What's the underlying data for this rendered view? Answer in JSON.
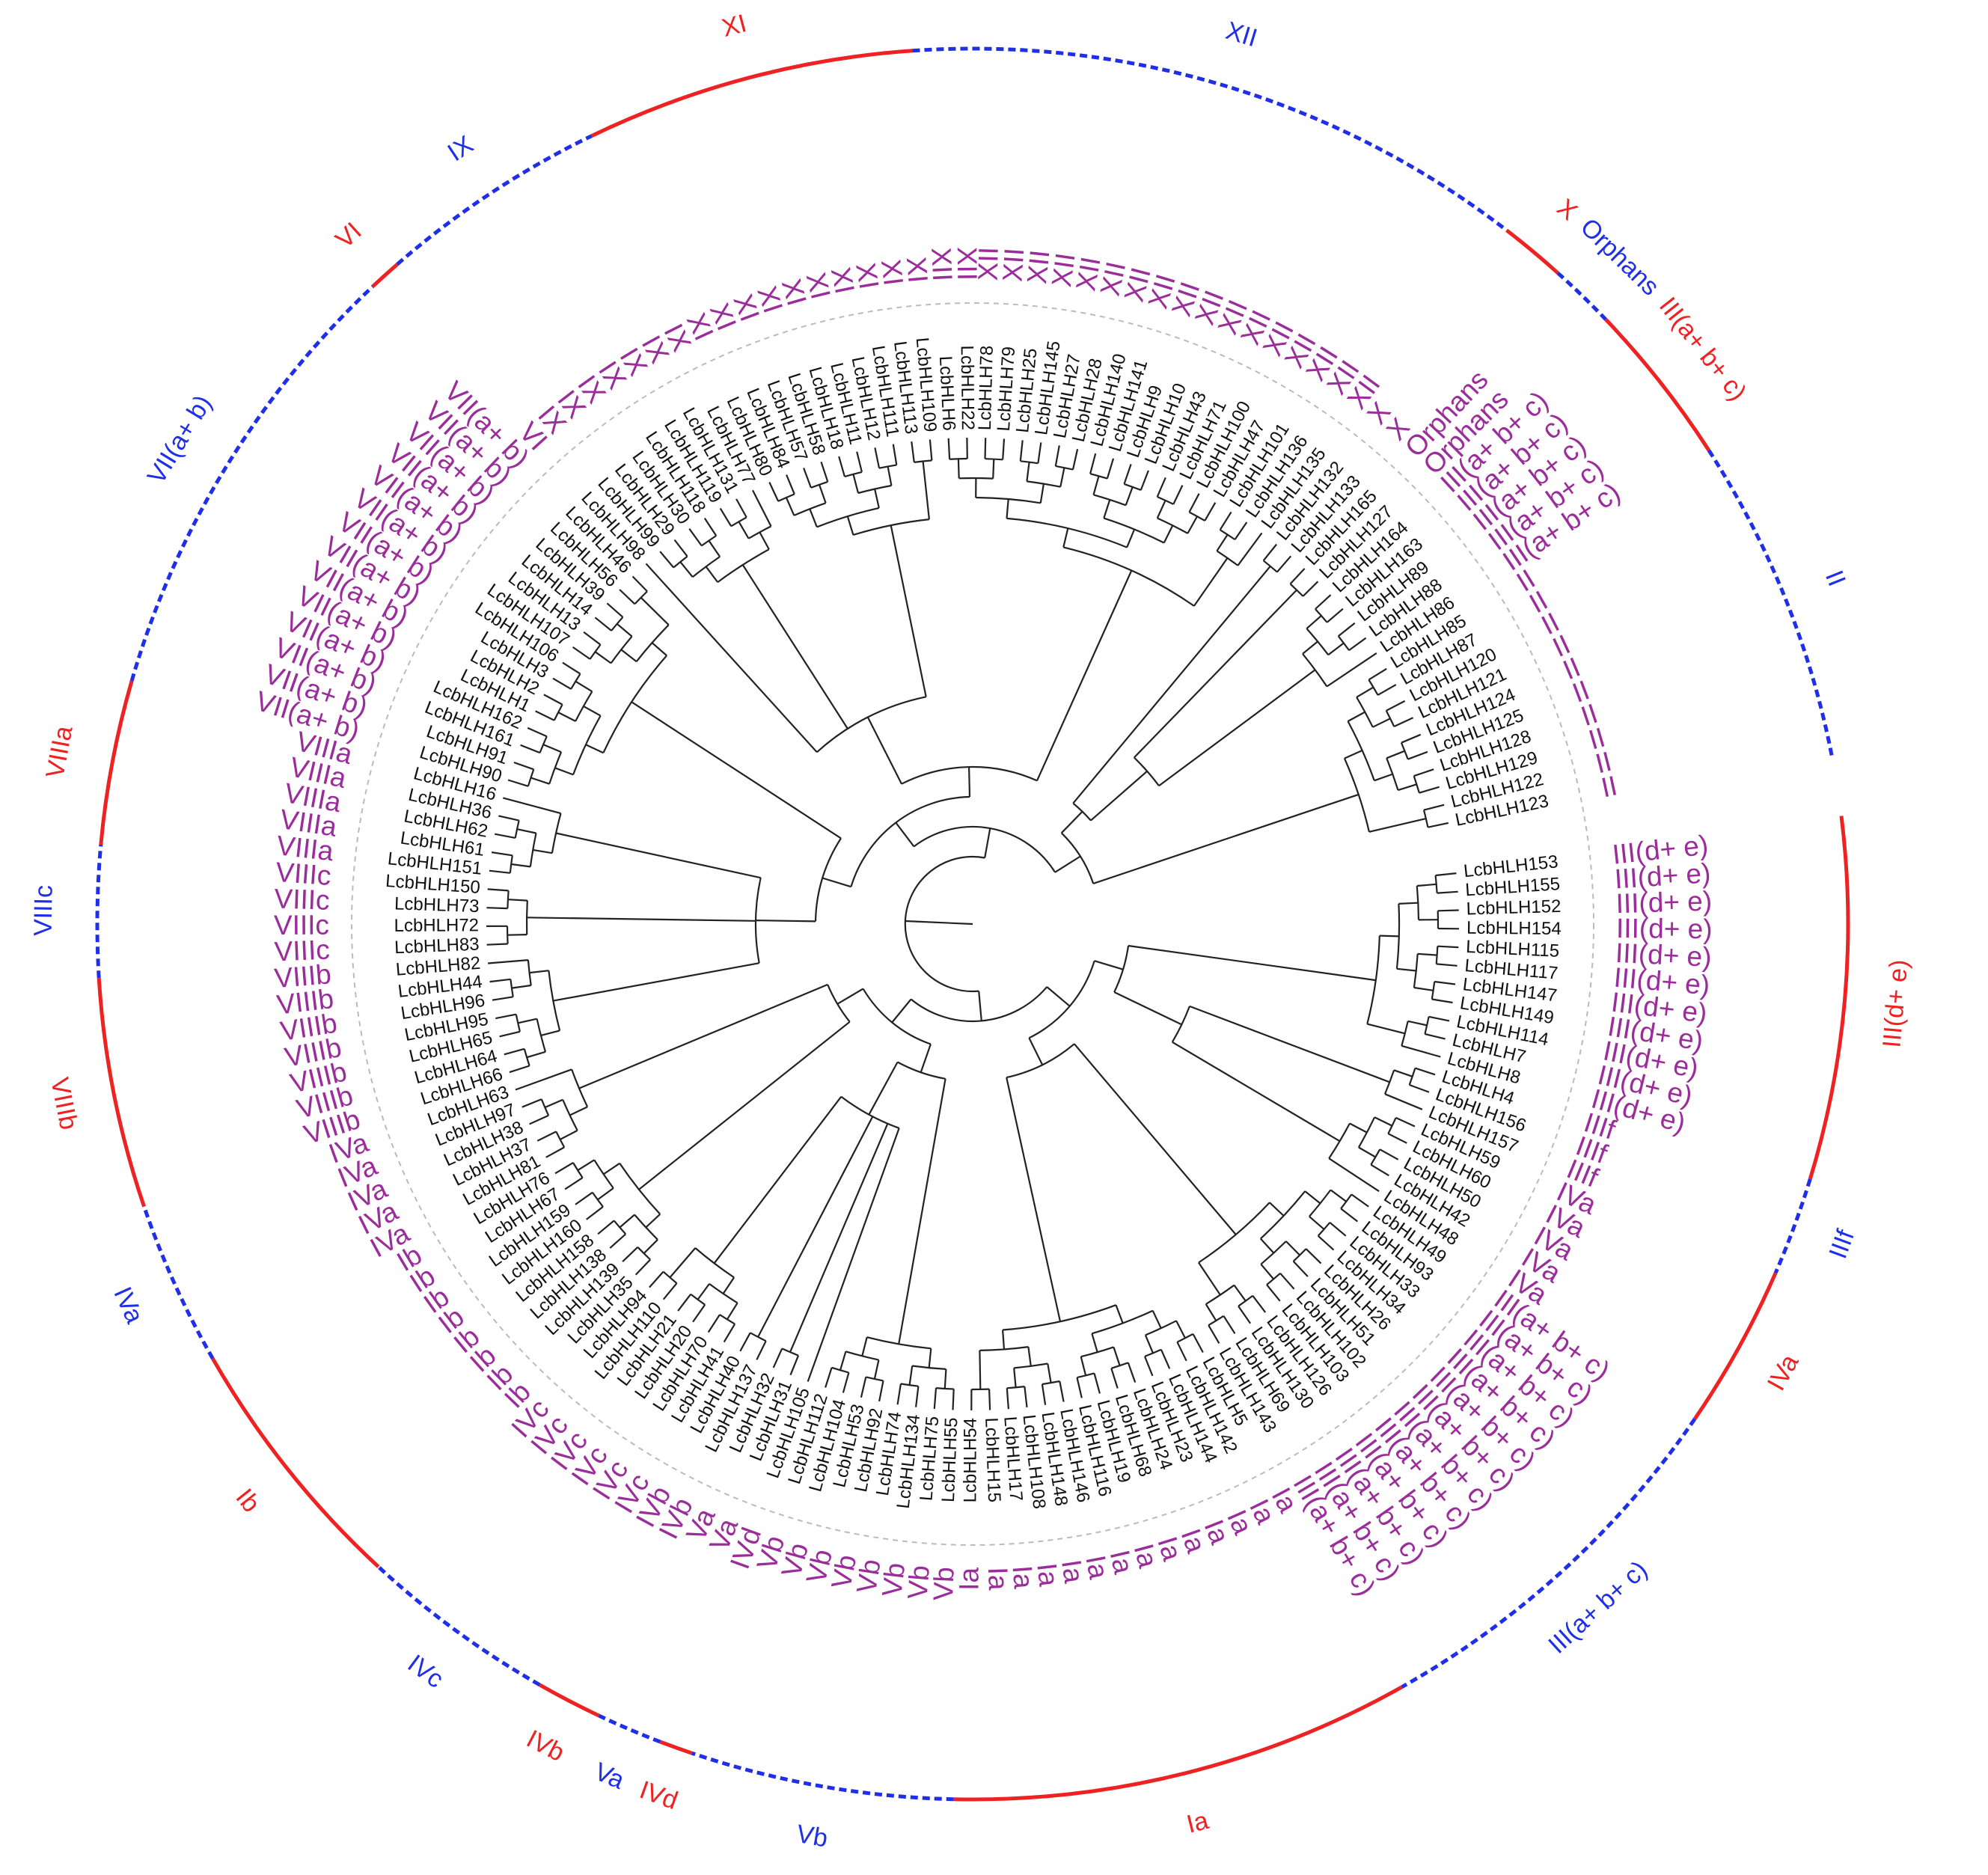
{
  "colors": {
    "branch": "#222222",
    "leaf_label": "#111111",
    "subfamily_label": "#9b2d9b",
    "ring_red": "#ee2222",
    "ring_blue": "#1f2fe8",
    "guide_circle": "#bbbbbb"
  },
  "leaves": [
    {
      "name": "LcbHLH153",
      "sub": "III(d+ e)"
    },
    {
      "name": "LcbHLH155",
      "sub": "III(d+ e)"
    },
    {
      "name": "LcbHLH152",
      "sub": "III(d+ e)"
    },
    {
      "name": "LcbHLH154",
      "sub": "III(d+ e)"
    },
    {
      "name": "LcbHLH115",
      "sub": "III(d+ e)"
    },
    {
      "name": "LcbHLH117",
      "sub": "III(d+ e)"
    },
    {
      "name": "LcbHLH147",
      "sub": "III(d+ e)"
    },
    {
      "name": "LcbHLH149",
      "sub": "III(d+ e)"
    },
    {
      "name": "LcbHLH114",
      "sub": "III(d+ e)"
    },
    {
      "name": "LcbHLH7",
      "sub": "III(d+ e)"
    },
    {
      "name": "LcbHLH8",
      "sub": "III(d+ e)"
    },
    {
      "name": "LcbHLH4",
      "sub": "IIIf"
    },
    {
      "name": "LcbHLH156",
      "sub": "IIIf"
    },
    {
      "name": "LcbHLH157",
      "sub": "IIIf"
    },
    {
      "name": "LcbHLH59",
      "sub": "IVa"
    },
    {
      "name": "LcbHLH60",
      "sub": "IVa"
    },
    {
      "name": "LcbHLH50",
      "sub": "IVa"
    },
    {
      "name": "LcbHLH42",
      "sub": "IVa"
    },
    {
      "name": "LcbHLH48",
      "sub": "IVa"
    },
    {
      "name": "LcbHLH49",
      "sub": "III(a+ b+ c)"
    },
    {
      "name": "LcbHLH93",
      "sub": "III(a+ b+ c)"
    },
    {
      "name": "LcbHLH33",
      "sub": "III(a+ b+ c)"
    },
    {
      "name": "LcbHLH34",
      "sub": "III(a+ b+ c)"
    },
    {
      "name": "LcbHLH26",
      "sub": "III(a+ b+ c)"
    },
    {
      "name": "LcbHLH51",
      "sub": "III(a+ b+ c)"
    },
    {
      "name": "LcbHLH102",
      "sub": "III(a+ b+ c)"
    },
    {
      "name": "LcbHLH103",
      "sub": "III(a+ b+ c)"
    },
    {
      "name": "LcbHLH126",
      "sub": "III(a+ b+ c)"
    },
    {
      "name": "LcbHLH130",
      "sub": "III(a+ b+ c)"
    },
    {
      "name": "LcbHLH69",
      "sub": "III(a+ b+ c)"
    },
    {
      "name": "LcbHLH143",
      "sub": "III(a+ b+ c)"
    },
    {
      "name": "LcbHLH5",
      "sub": "Ia"
    },
    {
      "name": "LcbHLH142",
      "sub": "Ia"
    },
    {
      "name": "LcbHLH144",
      "sub": "Ia"
    },
    {
      "name": "LcbHLH23",
      "sub": "Ia"
    },
    {
      "name": "LcbHLH24",
      "sub": "Ia"
    },
    {
      "name": "LcbHLH68",
      "sub": "Ia"
    },
    {
      "name": "LcbHLH19",
      "sub": "Ia"
    },
    {
      "name": "LcbHLH116",
      "sub": "Ia"
    },
    {
      "name": "LcbHLH146",
      "sub": "Ia"
    },
    {
      "name": "LcbHLH148",
      "sub": "Ia"
    },
    {
      "name": "LcbHLH108",
      "sub": "Ia"
    },
    {
      "name": "LcbHLH17",
      "sub": "Ia"
    },
    {
      "name": "LcbHLH15",
      "sub": "Ia"
    },
    {
      "name": "LcbHLH54",
      "sub": "Ia"
    },
    {
      "name": "LcbHLH55",
      "sub": "Vb"
    },
    {
      "name": "LcbHLH75",
      "sub": "Vb"
    },
    {
      "name": "LcbHLH134",
      "sub": "Vb"
    },
    {
      "name": "LcbHLH74",
      "sub": "Vb"
    },
    {
      "name": "LcbHLH92",
      "sub": "Vb"
    },
    {
      "name": "LcbHLH53",
      "sub": "Vb"
    },
    {
      "name": "LcbHLH104",
      "sub": "Vb"
    },
    {
      "name": "LcbHLH112",
      "sub": "Vb"
    },
    {
      "name": "LcbHLH105",
      "sub": "IVd"
    },
    {
      "name": "LcbHLH31",
      "sub": "Va"
    },
    {
      "name": "LcbHLH32",
      "sub": "Va"
    },
    {
      "name": "LcbHLH137",
      "sub": "IVb"
    },
    {
      "name": "LcbHLH40",
      "sub": "IVb"
    },
    {
      "name": "LcbHLH41",
      "sub": "IVc"
    },
    {
      "name": "LcbHLH70",
      "sub": "IVc"
    },
    {
      "name": "LcbHLH20",
      "sub": "IVc"
    },
    {
      "name": "LcbHLH21",
      "sub": "IVc"
    },
    {
      "name": "LcbHLH110",
      "sub": "IVc"
    },
    {
      "name": "LcbHLH94",
      "sub": "IVc"
    },
    {
      "name": "LcbHLH35",
      "sub": "Ib"
    },
    {
      "name": "LcbHLH139",
      "sub": "Ib"
    },
    {
      "name": "LcbHLH138",
      "sub": "Ib"
    },
    {
      "name": "LcbHLH158",
      "sub": "Ib"
    },
    {
      "name": "LcbHLH160",
      "sub": "Ib"
    },
    {
      "name": "LcbHLH159",
      "sub": "Ib"
    },
    {
      "name": "LcbHLH67",
      "sub": "Ib"
    },
    {
      "name": "LcbHLH76",
      "sub": "Ib"
    },
    {
      "name": "LcbHLH81",
      "sub": "IVa"
    },
    {
      "name": "LcbHLH37",
      "sub": "IVa"
    },
    {
      "name": "LcbHLH38",
      "sub": "IVa"
    },
    {
      "name": "LcbHLH97",
      "sub": "IVa"
    },
    {
      "name": "LcbHLH63",
      "sub": "IVa"
    },
    {
      "name": "LcbHLH66",
      "sub": "VIIIb"
    },
    {
      "name": "LcbHLH64",
      "sub": "VIIIb"
    },
    {
      "name": "LcbHLH65",
      "sub": "VIIIb"
    },
    {
      "name": "LcbHLH95",
      "sub": "VIIIb"
    },
    {
      "name": "LcbHLH96",
      "sub": "VIIIb"
    },
    {
      "name": "LcbHLH44",
      "sub": "VIIIb"
    },
    {
      "name": "LcbHLH82",
      "sub": "VIIIb"
    },
    {
      "name": "LcbHLH83",
      "sub": "VIIIc"
    },
    {
      "name": "LcbHLH72",
      "sub": "VIIIc"
    },
    {
      "name": "LcbHLH73",
      "sub": "VIIIc"
    },
    {
      "name": "LcbHLH150",
      "sub": "VIIIc"
    },
    {
      "name": "LcbHLH151",
      "sub": "VIIIa"
    },
    {
      "name": "LcbHLH61",
      "sub": "VIIIa"
    },
    {
      "name": "LcbHLH62",
      "sub": "VIIIa"
    },
    {
      "name": "LcbHLH36",
      "sub": "VIIIa"
    },
    {
      "name": "LcbHLH16",
      "sub": "VIIIa"
    },
    {
      "name": "LcbHLH90",
      "sub": "VII(a+ b)"
    },
    {
      "name": "LcbHLH91",
      "sub": "VII(a+ b)"
    },
    {
      "name": "LcbHLH161",
      "sub": "VII(a+ b)"
    },
    {
      "name": "LcbHLH162",
      "sub": "VII(a+ b)"
    },
    {
      "name": "LcbHLH1",
      "sub": "VII(a+ b)"
    },
    {
      "name": "LcbHLH2",
      "sub": "VII(a+ b)"
    },
    {
      "name": "LcbHLH3",
      "sub": "VII(a+ b)"
    },
    {
      "name": "LcbHLH106",
      "sub": "VII(a+ b)"
    },
    {
      "name": "LcbHLH107",
      "sub": "VII(a+ b)"
    },
    {
      "name": "LcbHLH13",
      "sub": "VII(a+ b)"
    },
    {
      "name": "LcbHLH14",
      "sub": "VII(a+ b)"
    },
    {
      "name": "LcbHLH39",
      "sub": "VII(a+ b)"
    },
    {
      "name": "LcbHLH56",
      "sub": "VII(a+ b)"
    },
    {
      "name": "LcbHLH46",
      "sub": "VII(a+ b)"
    },
    {
      "name": "LcbHLH98",
      "sub": "VI"
    },
    {
      "name": "LcbHLH99",
      "sub": "IX"
    },
    {
      "name": "LcbHLH29",
      "sub": "IX"
    },
    {
      "name": "LcbHLH30",
      "sub": "IX"
    },
    {
      "name": "LcbHLH118",
      "sub": "IX"
    },
    {
      "name": "LcbHLH119",
      "sub": "IX"
    },
    {
      "name": "LcbHLH131",
      "sub": "IX"
    },
    {
      "name": "LcbHLH77",
      "sub": "IX"
    },
    {
      "name": "LcbHLH80",
      "sub": "XI"
    },
    {
      "name": "LcbHLH84",
      "sub": "XI"
    },
    {
      "name": "LcbHLH57",
      "sub": "XI"
    },
    {
      "name": "LcbHLH58",
      "sub": "XI"
    },
    {
      "name": "LcbHLH18",
      "sub": "XI"
    },
    {
      "name": "LcbHLH11",
      "sub": "XI"
    },
    {
      "name": "LcbHLH12",
      "sub": "XI"
    },
    {
      "name": "LcbHLH111",
      "sub": "XI"
    },
    {
      "name": "LcbHLH113",
      "sub": "XI"
    },
    {
      "name": "LcbHLH109",
      "sub": "XI"
    },
    {
      "name": "LcbHLH6",
      "sub": "XII"
    },
    {
      "name": "LcbHLH22",
      "sub": "XII"
    },
    {
      "name": "LcbHLH78",
      "sub": "XII"
    },
    {
      "name": "LcbHLH79",
      "sub": "XII"
    },
    {
      "name": "LcbHLH25",
      "sub": "XII"
    },
    {
      "name": "LcbHLH145",
      "sub": "XII"
    },
    {
      "name": "LcbHLH27",
      "sub": "XII"
    },
    {
      "name": "LcbHLH28",
      "sub": "XII"
    },
    {
      "name": "LcbHLH140",
      "sub": "XII"
    },
    {
      "name": "LcbHLH141",
      "sub": "XII"
    },
    {
      "name": "LcbHLH9",
      "sub": "XII"
    },
    {
      "name": "LcbHLH10",
      "sub": "XII"
    },
    {
      "name": "LcbHLH43",
      "sub": "XII"
    },
    {
      "name": "LcbHLH71",
      "sub": "XII"
    },
    {
      "name": "LcbHLH100",
      "sub": "XII"
    },
    {
      "name": "LcbHLH47",
      "sub": "XII"
    },
    {
      "name": "LcbHLH101",
      "sub": "XII"
    },
    {
      "name": "LcbHLH136",
      "sub": "XII"
    },
    {
      "name": "LcbHLH135",
      "sub": "XII"
    },
    {
      "name": "LcbHLH132",
      "sub": "X"
    },
    {
      "name": "LcbHLH133",
      "sub": "X"
    },
    {
      "name": "LcbHLH165",
      "sub": "Orphans"
    },
    {
      "name": "LcbHLH127",
      "sub": "Orphans"
    },
    {
      "name": "LcbHLH164",
      "sub": "III(a+ b+ c)"
    },
    {
      "name": "LcbHLH163",
      "sub": "III(a+ b+ c)"
    },
    {
      "name": "LcbHLH89",
      "sub": "III(a+ b+ c)"
    },
    {
      "name": "LcbHLH88",
      "sub": "III(a+ b+ c)"
    },
    {
      "name": "LcbHLH86",
      "sub": "III(a+ b+ c)"
    },
    {
      "name": "LcbHLH85",
      "sub": "II"
    },
    {
      "name": "LcbHLH87",
      "sub": "II"
    },
    {
      "name": "LcbHLH120",
      "sub": "II"
    },
    {
      "name": "LcbHLH121",
      "sub": "II"
    },
    {
      "name": "LcbHLH124",
      "sub": "II"
    },
    {
      "name": "LcbHLH125",
      "sub": "II"
    },
    {
      "name": "LcbHLH128",
      "sub": "II"
    },
    {
      "name": "LcbHLH129",
      "sub": "II"
    },
    {
      "name": "LcbHLH122",
      "sub": "II"
    },
    {
      "name": "LcbHLH123",
      "sub": "II"
    }
  ],
  "groups": [
    {
      "label": "III(d+ e)",
      "from": "LcbHLH153",
      "to": "LcbHLH8",
      "color": "red"
    },
    {
      "label": "IIIf",
      "from": "LcbHLH4",
      "to": "LcbHLH157",
      "color": "blue"
    },
    {
      "label": "IVa",
      "from": "LcbHLH59",
      "to": "LcbHLH48",
      "color": "red"
    },
    {
      "label": "III(a+ b+ c)",
      "from": "LcbHLH49",
      "to": "LcbHLH143",
      "color": "blue"
    },
    {
      "label": "Ia",
      "from": "LcbHLH5",
      "to": "LcbHLH54",
      "color": "red"
    },
    {
      "label": "Vb",
      "from": "LcbHLH55",
      "to": "LcbHLH112",
      "color": "blue"
    },
    {
      "label": "IVd",
      "from": "LcbHLH105",
      "to": "LcbHLH105",
      "color": "red"
    },
    {
      "label": "Va",
      "from": "LcbHLH31",
      "to": "LcbHLH32",
      "color": "blue"
    },
    {
      "label": "IVb",
      "from": "LcbHLH137",
      "to": "LcbHLH40",
      "color": "red"
    },
    {
      "label": "IVc",
      "from": "LcbHLH41",
      "to": "LcbHLH94",
      "color": "blue"
    },
    {
      "label": "Ib",
      "from": "LcbHLH35",
      "to": "LcbHLH76",
      "color": "red"
    },
    {
      "label": "IVa",
      "from": "LcbHLH81",
      "to": "LcbHLH63",
      "color": "blue"
    },
    {
      "label": "VIIIb",
      "from": "LcbHLH66",
      "to": "LcbHLH82",
      "color": "red"
    },
    {
      "label": "VIIIc",
      "from": "LcbHLH83",
      "to": "LcbHLH150",
      "color": "blue"
    },
    {
      "label": "VIIIa",
      "from": "LcbHLH151",
      "to": "LcbHLH16",
      "color": "red"
    },
    {
      "label": "VII(a+ b)",
      "from": "LcbHLH90",
      "to": "LcbHLH46",
      "color": "blue"
    },
    {
      "label": "VI",
      "from": "LcbHLH98",
      "to": "LcbHLH98",
      "color": "red"
    },
    {
      "label": "IX",
      "from": "LcbHLH99",
      "to": "LcbHLH77",
      "color": "blue"
    },
    {
      "label": "XI",
      "from": "LcbHLH80",
      "to": "LcbHLH109",
      "color": "red"
    },
    {
      "label": "XII",
      "from": "LcbHLH6",
      "to": "LcbHLH135",
      "color": "blue"
    },
    {
      "label": "X",
      "from": "LcbHLH132",
      "to": "LcbHLH133",
      "color": "red"
    },
    {
      "label": "Orphans",
      "from": "LcbHLH165",
      "to": "LcbHLH127",
      "color": "blue"
    },
    {
      "label": "III(a+ b+ c)",
      "from": "LcbHLH164",
      "to": "LcbHLH86",
      "color": "red"
    },
    {
      "label": "II",
      "from": "LcbHLH85",
      "to": "LcbHLH123",
      "color": "blue"
    }
  ]
}
